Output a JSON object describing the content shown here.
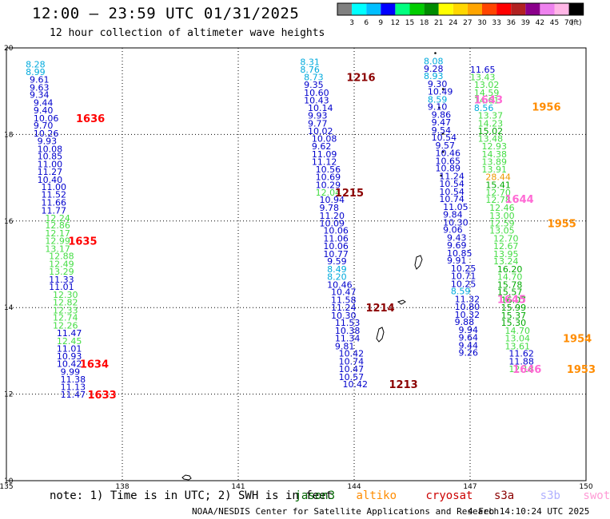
{
  "header": {
    "title": "12:00 – 23:59 UTC 01/31/2025",
    "subtitle": "12 hour collection of altimeter wave heights"
  },
  "colorbar": {
    "unit": "(ft)",
    "ticks": [
      "3",
      "6",
      "9",
      "12",
      "15",
      "18",
      "21",
      "24",
      "27",
      "30",
      "33",
      "36",
      "39",
      "42",
      "45",
      "70"
    ],
    "colors": [
      "#808080",
      "#00ffff",
      "#00bfff",
      "#0000ff",
      "#00ff7f",
      "#00cd00",
      "#008b00",
      "#ffff00",
      "#ffd700",
      "#ffa500",
      "#ff4500",
      "#ff0000",
      "#b22222",
      "#8b008b",
      "#ee82ee",
      "#ffb6e6",
      "#000000"
    ]
  },
  "map": {
    "lon_ticks": [
      "135",
      "138",
      "141",
      "144",
      "147",
      "150"
    ],
    "lat_ticks": [
      "10",
      "12",
      "14",
      "16",
      "18",
      "20"
    ],
    "lon_range": [
      135,
      150
    ],
    "lat_range": [
      10,
      20
    ],
    "tracks": [
      {
        "color": "#0000cc",
        "points": [
          [
            135.5,
            19.62,
            "8.28"
          ],
          [
            135.5,
            19.45,
            "8.99"
          ],
          [
            135.6,
            19.27,
            "9.61"
          ],
          [
            135.6,
            19.09,
            "9.63"
          ],
          [
            135.6,
            18.92,
            "9.34"
          ],
          [
            135.7,
            18.74,
            "9.44"
          ],
          [
            135.7,
            18.56,
            "9.40"
          ],
          [
            135.7,
            18.38,
            "10.06"
          ],
          [
            135.7,
            18.21,
            "9.70"
          ],
          [
            135.7,
            18.03,
            "10.26"
          ],
          [
            135.8,
            17.85,
            "9.93"
          ],
          [
            135.8,
            17.67,
            "10.08"
          ],
          [
            135.8,
            17.5,
            "10.85"
          ],
          [
            135.8,
            17.32,
            "11.00"
          ],
          [
            135.8,
            17.14,
            "11.27"
          ],
          [
            135.8,
            16.96,
            "10.40"
          ],
          [
            135.9,
            16.79,
            "11.00"
          ],
          [
            135.9,
            16.61,
            "11.52"
          ],
          [
            135.9,
            16.43,
            "11.66"
          ],
          [
            135.9,
            16.25,
            "11.77"
          ],
          [
            136.0,
            16.07,
            "12.24"
          ],
          [
            136.0,
            15.9,
            "12.86"
          ],
          [
            136.0,
            15.72,
            "12.17"
          ],
          [
            136.0,
            15.54,
            "12.99"
          ],
          [
            136.0,
            15.36,
            "13.17"
          ],
          [
            136.1,
            15.19,
            "12.88"
          ],
          [
            136.1,
            15.01,
            "12.49"
          ],
          [
            136.1,
            14.83,
            "13.29"
          ],
          [
            136.1,
            14.65,
            "11.33"
          ],
          [
            136.1,
            14.48,
            "11.01"
          ],
          [
            136.2,
            14.3,
            "12.30"
          ],
          [
            136.2,
            14.12,
            "12.82"
          ],
          [
            136.2,
            13.94,
            "12.33"
          ],
          [
            136.2,
            13.77,
            "12.74"
          ],
          [
            136.2,
            13.59,
            "12.26"
          ],
          [
            136.3,
            13.41,
            "11.47"
          ],
          [
            136.3,
            13.23,
            "12.45"
          ],
          [
            136.3,
            13.05,
            "11.01"
          ],
          [
            136.3,
            12.88,
            "10.93"
          ],
          [
            136.3,
            12.7,
            "10.42"
          ],
          [
            136.4,
            12.52,
            "9.99"
          ],
          [
            136.4,
            12.34,
            "11.38"
          ],
          [
            136.4,
            12.17,
            "11.13"
          ],
          [
            136.4,
            11.99,
            "11.47"
          ]
        ]
      },
      {
        "color": "#0000cc",
        "points": [
          [
            142.6,
            19.68,
            "8.31"
          ],
          [
            142.6,
            19.5,
            "8.76"
          ],
          [
            142.7,
            19.33,
            "8.73"
          ],
          [
            142.7,
            19.15,
            "9.35"
          ],
          [
            142.7,
            18.97,
            "10.60"
          ],
          [
            142.7,
            18.79,
            "10.43"
          ],
          [
            142.8,
            18.62,
            "10.14"
          ],
          [
            142.8,
            18.44,
            "9.93"
          ],
          [
            142.8,
            18.26,
            "9.77"
          ],
          [
            142.8,
            18.08,
            "10.02"
          ],
          [
            142.9,
            17.91,
            "10.08"
          ],
          [
            142.9,
            17.73,
            "9.62"
          ],
          [
            142.9,
            17.55,
            "11.09"
          ],
          [
            142.9,
            17.37,
            "11.12"
          ],
          [
            143.0,
            17.2,
            "10.56"
          ],
          [
            143.0,
            17.02,
            "10.69"
          ],
          [
            143.0,
            16.84,
            "10.29"
          ],
          [
            143.0,
            16.66,
            "12.04"
          ],
          [
            143.1,
            16.49,
            "10.94"
          ],
          [
            143.1,
            16.31,
            "9.78"
          ],
          [
            143.1,
            16.13,
            "11.20"
          ],
          [
            143.1,
            15.95,
            "10.09"
          ],
          [
            143.2,
            15.78,
            "10.06"
          ],
          [
            143.2,
            15.6,
            "11.06"
          ],
          [
            143.2,
            15.42,
            "10.06"
          ],
          [
            143.2,
            15.24,
            "10.77"
          ],
          [
            143.3,
            15.07,
            "9.59"
          ],
          [
            143.3,
            14.89,
            "8.49"
          ],
          [
            143.3,
            14.71,
            "8.20"
          ],
          [
            143.3,
            14.53,
            "10.46"
          ],
          [
            143.4,
            14.36,
            "10.47"
          ],
          [
            143.4,
            14.18,
            "11.58"
          ],
          [
            143.4,
            14.0,
            "11.24"
          ],
          [
            143.4,
            13.82,
            "10.30"
          ],
          [
            143.5,
            13.65,
            "11.53"
          ],
          [
            143.5,
            13.47,
            "10.38"
          ],
          [
            143.5,
            13.29,
            "11.34"
          ],
          [
            143.5,
            13.11,
            "9.81"
          ],
          [
            143.6,
            12.94,
            "10.42"
          ],
          [
            143.6,
            12.76,
            "10.74"
          ],
          [
            143.6,
            12.58,
            "10.47"
          ],
          [
            143.6,
            12.4,
            "10.57"
          ],
          [
            143.7,
            12.23,
            "10.42"
          ]
        ]
      },
      {
        "color": "#0000cc",
        "points": [
          [
            145.8,
            19.7,
            "8.08"
          ],
          [
            145.8,
            19.52,
            "9.28"
          ],
          [
            145.8,
            19.35,
            "8.93"
          ],
          [
            145.9,
            19.17,
            "9.30"
          ],
          [
            145.9,
            18.99,
            "10.49"
          ],
          [
            145.9,
            18.81,
            "8.59"
          ],
          [
            145.9,
            18.64,
            "9.10"
          ],
          [
            146.0,
            18.46,
            "9.86"
          ],
          [
            146.0,
            18.28,
            "9.47"
          ],
          [
            146.0,
            18.1,
            "9.54"
          ],
          [
            146.0,
            17.93,
            "10.54"
          ],
          [
            146.1,
            17.75,
            "9.57"
          ],
          [
            146.1,
            17.57,
            "10.46"
          ],
          [
            146.1,
            17.39,
            "10.65"
          ],
          [
            146.1,
            17.22,
            "10.89"
          ],
          [
            146.2,
            17.04,
            "11.24"
          ],
          [
            146.2,
            16.86,
            "10.54"
          ],
          [
            146.2,
            16.68,
            "10.54"
          ],
          [
            146.2,
            16.51,
            "10.74"
          ],
          [
            146.3,
            16.33,
            "11.05"
          ],
          [
            146.3,
            16.15,
            "9.84"
          ],
          [
            146.3,
            15.97,
            "10.30"
          ],
          [
            146.3,
            15.8,
            "9.06"
          ],
          [
            146.4,
            15.62,
            "9.43"
          ],
          [
            146.4,
            15.44,
            "9.69"
          ],
          [
            146.4,
            15.26,
            "10.85"
          ],
          [
            146.4,
            15.09,
            "9.91"
          ],
          [
            146.5,
            14.91,
            "10.25"
          ],
          [
            146.5,
            14.73,
            "10.71"
          ],
          [
            146.5,
            14.55,
            "10.25"
          ],
          [
            146.5,
            14.38,
            "8.59"
          ],
          [
            146.6,
            14.2,
            "11.32"
          ],
          [
            146.6,
            14.02,
            "10.80"
          ],
          [
            146.6,
            13.84,
            "10.32"
          ],
          [
            146.6,
            13.67,
            "9.88"
          ],
          [
            146.7,
            13.49,
            "9.94"
          ],
          [
            146.7,
            13.31,
            "9.64"
          ],
          [
            146.7,
            13.13,
            "9.44"
          ],
          [
            146.7,
            12.96,
            "9.26"
          ]
        ]
      },
      {
        "color": "#00cc00",
        "points": [
          [
            147.0,
            19.5,
            "11.65"
          ],
          [
            147.0,
            19.33,
            "13.43"
          ],
          [
            147.1,
            19.15,
            "13.02"
          ],
          [
            147.1,
            18.97,
            "14.59"
          ],
          [
            147.1,
            18.79,
            "14.61"
          ],
          [
            147.1,
            18.62,
            "8.56"
          ],
          [
            147.2,
            18.44,
            "13.37"
          ],
          [
            147.2,
            18.26,
            "14.23"
          ],
          [
            147.2,
            18.08,
            "15.02"
          ],
          [
            147.2,
            17.91,
            "13.48"
          ],
          [
            147.3,
            17.73,
            "12.93"
          ],
          [
            147.3,
            17.55,
            "14.38"
          ],
          [
            147.3,
            17.37,
            "13.89"
          ],
          [
            147.3,
            17.2,
            "13.91"
          ],
          [
            147.4,
            17.02,
            "28.44"
          ],
          [
            147.4,
            16.84,
            "15.41"
          ],
          [
            147.4,
            16.66,
            "12.70"
          ],
          [
            147.4,
            16.49,
            "12.78"
          ],
          [
            147.5,
            16.31,
            "12.46"
          ],
          [
            147.5,
            16.13,
            "13.00"
          ],
          [
            147.5,
            15.95,
            "12.59"
          ],
          [
            147.5,
            15.78,
            "13.05"
          ],
          [
            147.6,
            15.6,
            "12.70"
          ],
          [
            147.6,
            15.42,
            "12.67"
          ],
          [
            147.6,
            15.24,
            "13.95"
          ],
          [
            147.6,
            15.07,
            "13.24"
          ],
          [
            147.7,
            14.89,
            "16.20"
          ],
          [
            147.7,
            14.71,
            "14.70"
          ],
          [
            147.7,
            14.53,
            "15.78"
          ],
          [
            147.7,
            14.36,
            "15.57"
          ],
          [
            147.8,
            14.18,
            "16.07"
          ],
          [
            147.8,
            14.0,
            "15.99"
          ],
          [
            147.8,
            13.82,
            "15.37"
          ],
          [
            147.8,
            13.65,
            "15.30"
          ],
          [
            147.9,
            13.47,
            "14.70"
          ],
          [
            147.9,
            13.29,
            "13.04"
          ],
          [
            147.9,
            13.11,
            "13.61"
          ],
          [
            148.0,
            12.94,
            "11.62"
          ],
          [
            148.0,
            12.76,
            "11.88"
          ],
          [
            148.0,
            12.58,
            "12.18"
          ]
        ]
      }
    ],
    "time_labels": [
      {
        "lon": 136.8,
        "lat": 18.38,
        "text": "1636",
        "color": "#ff0000"
      },
      {
        "lon": 136.6,
        "lat": 15.54,
        "text": "1635",
        "color": "#ff0000"
      },
      {
        "lon": 136.9,
        "lat": 12.7,
        "text": "1634",
        "color": "#ff0000"
      },
      {
        "lon": 137.1,
        "lat": 11.99,
        "text": "1633",
        "color": "#ff0000"
      },
      {
        "lon": 143.8,
        "lat": 19.33,
        "text": "1216",
        "color": "#8b0000"
      },
      {
        "lon": 143.5,
        "lat": 16.66,
        "text": "1215",
        "color": "#8b0000"
      },
      {
        "lon": 144.3,
        "lat": 14.0,
        "text": "1214",
        "color": "#8b0000"
      },
      {
        "lon": 144.9,
        "lat": 12.23,
        "text": "1213",
        "color": "#8b0000"
      },
      {
        "lon": 147.1,
        "lat": 18.81,
        "text": "1643",
        "color": "#ff69d4"
      },
      {
        "lon": 147.9,
        "lat": 16.51,
        "text": "1644",
        "color": "#ff69d4"
      },
      {
        "lon": 147.7,
        "lat": 14.2,
        "text": "1645",
        "color": "#ff69d4"
      },
      {
        "lon": 148.1,
        "lat": 12.58,
        "text": "1646",
        "color": "#ff69d4"
      },
      {
        "lon": 148.6,
        "lat": 18.64,
        "text": "1956",
        "color": "#ff8c00"
      },
      {
        "lon": 149.0,
        "lat": 15.95,
        "text": "1955",
        "color": "#ff8c00"
      },
      {
        "lon": 149.4,
        "lat": 13.29,
        "text": "1954",
        "color": "#ff8c00"
      },
      {
        "lon": 149.5,
        "lat": 12.58,
        "text": "1953",
        "color": "#ff8c00"
      }
    ]
  },
  "notes": {
    "prefix": "note: 1) Time is in UTC; 2) SWH is in feet",
    "sat_jason3": "jason3",
    "sat_altiko": "altiko",
    "sat_cryosat": "cryosat",
    "sat_s3a": "s3a",
    "sat_s3b": "s3b",
    "sat_swot": "swot"
  },
  "footer": {
    "credit": "NOAA/NESDIS Center for Satellite Applications and Research",
    "stamp": "4 Feb 14:10:24 UTC 2025"
  }
}
